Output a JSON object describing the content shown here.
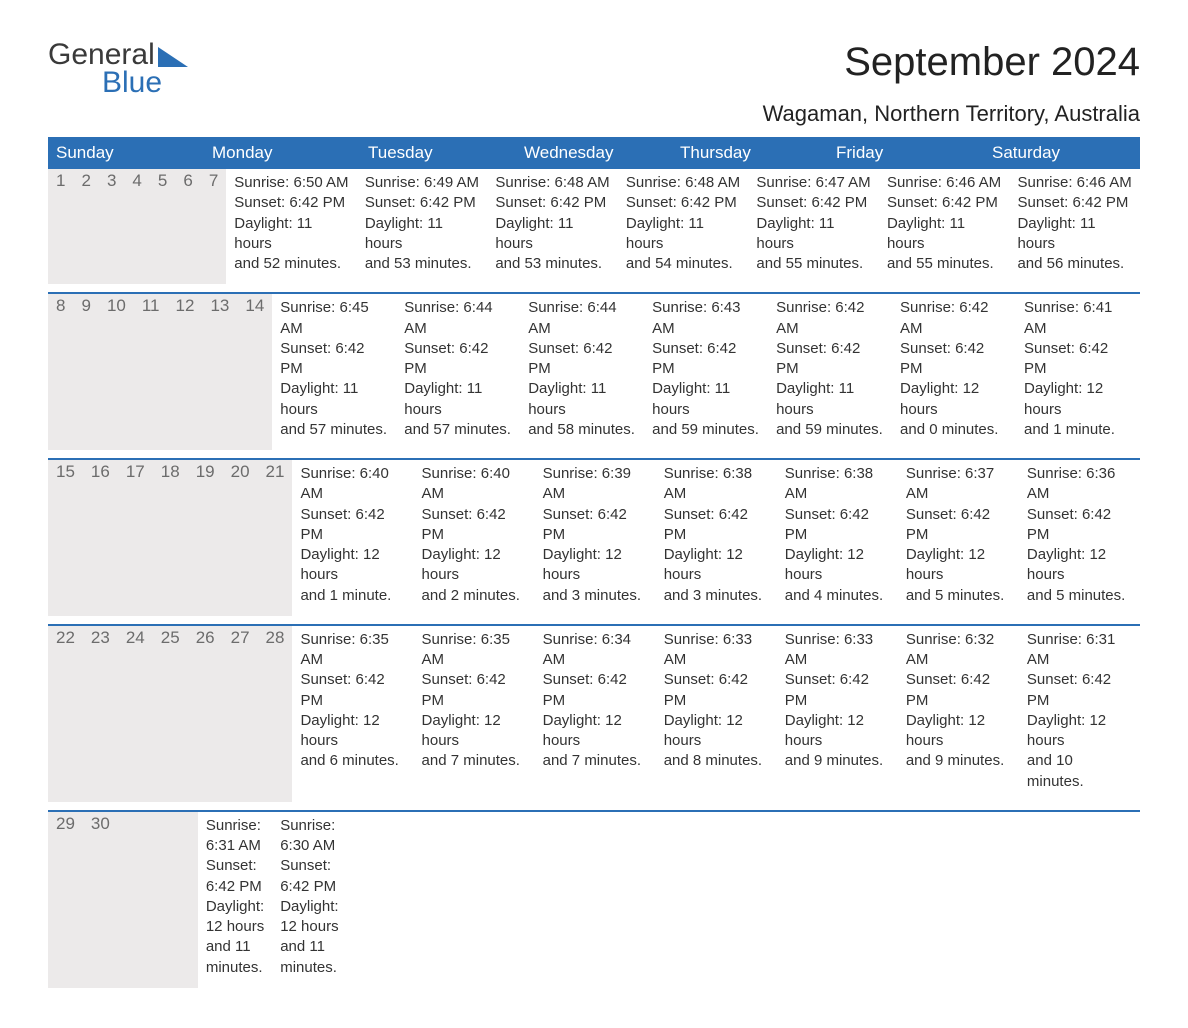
{
  "logo": {
    "line1": "General",
    "line2": "Blue"
  },
  "heading": {
    "month": "September 2024",
    "location": "Wagaman, Northern Territory, Australia"
  },
  "colors": {
    "primary": "#2b6fb5",
    "header_text": "#ffffff",
    "daynum_bg": "#eceaea",
    "daynum_text": "#6c6c6c",
    "body_text": "#333333",
    "background": "#ffffff"
  },
  "typography": {
    "month_title_fontsize": 40,
    "location_fontsize": 22,
    "weekday_fontsize": 17,
    "daynum_fontsize": 17,
    "cell_fontsize": 15
  },
  "weekdays": [
    "Sunday",
    "Monday",
    "Tuesday",
    "Wednesday",
    "Thursday",
    "Friday",
    "Saturday"
  ],
  "weeks": [
    {
      "nums": [
        "1",
        "2",
        "3",
        "4",
        "5",
        "6",
        "7"
      ],
      "days": [
        {
          "sunrise": "Sunrise: 6:50 AM",
          "sunset": "Sunset: 6:42 PM",
          "d1": "Daylight: 11 hours",
          "d2": "and 52 minutes."
        },
        {
          "sunrise": "Sunrise: 6:49 AM",
          "sunset": "Sunset: 6:42 PM",
          "d1": "Daylight: 11 hours",
          "d2": "and 53 minutes."
        },
        {
          "sunrise": "Sunrise: 6:48 AM",
          "sunset": "Sunset: 6:42 PM",
          "d1": "Daylight: 11 hours",
          "d2": "and 53 minutes."
        },
        {
          "sunrise": "Sunrise: 6:48 AM",
          "sunset": "Sunset: 6:42 PM",
          "d1": "Daylight: 11 hours",
          "d2": "and 54 minutes."
        },
        {
          "sunrise": "Sunrise: 6:47 AM",
          "sunset": "Sunset: 6:42 PM",
          "d1": "Daylight: 11 hours",
          "d2": "and 55 minutes."
        },
        {
          "sunrise": "Sunrise: 6:46 AM",
          "sunset": "Sunset: 6:42 PM",
          "d1": "Daylight: 11 hours",
          "d2": "and 55 minutes."
        },
        {
          "sunrise": "Sunrise: 6:46 AM",
          "sunset": "Sunset: 6:42 PM",
          "d1": "Daylight: 11 hours",
          "d2": "and 56 minutes."
        }
      ]
    },
    {
      "nums": [
        "8",
        "9",
        "10",
        "11",
        "12",
        "13",
        "14"
      ],
      "days": [
        {
          "sunrise": "Sunrise: 6:45 AM",
          "sunset": "Sunset: 6:42 PM",
          "d1": "Daylight: 11 hours",
          "d2": "and 57 minutes."
        },
        {
          "sunrise": "Sunrise: 6:44 AM",
          "sunset": "Sunset: 6:42 PM",
          "d1": "Daylight: 11 hours",
          "d2": "and 57 minutes."
        },
        {
          "sunrise": "Sunrise: 6:44 AM",
          "sunset": "Sunset: 6:42 PM",
          "d1": "Daylight: 11 hours",
          "d2": "and 58 minutes."
        },
        {
          "sunrise": "Sunrise: 6:43 AM",
          "sunset": "Sunset: 6:42 PM",
          "d1": "Daylight: 11 hours",
          "d2": "and 59 minutes."
        },
        {
          "sunrise": "Sunrise: 6:42 AM",
          "sunset": "Sunset: 6:42 PM",
          "d1": "Daylight: 11 hours",
          "d2": "and 59 minutes."
        },
        {
          "sunrise": "Sunrise: 6:42 AM",
          "sunset": "Sunset: 6:42 PM",
          "d1": "Daylight: 12 hours",
          "d2": "and 0 minutes."
        },
        {
          "sunrise": "Sunrise: 6:41 AM",
          "sunset": "Sunset: 6:42 PM",
          "d1": "Daylight: 12 hours",
          "d2": "and 1 minute."
        }
      ]
    },
    {
      "nums": [
        "15",
        "16",
        "17",
        "18",
        "19",
        "20",
        "21"
      ],
      "days": [
        {
          "sunrise": "Sunrise: 6:40 AM",
          "sunset": "Sunset: 6:42 PM",
          "d1": "Daylight: 12 hours",
          "d2": "and 1 minute."
        },
        {
          "sunrise": "Sunrise: 6:40 AM",
          "sunset": "Sunset: 6:42 PM",
          "d1": "Daylight: 12 hours",
          "d2": "and 2 minutes."
        },
        {
          "sunrise": "Sunrise: 6:39 AM",
          "sunset": "Sunset: 6:42 PM",
          "d1": "Daylight: 12 hours",
          "d2": "and 3 minutes."
        },
        {
          "sunrise": "Sunrise: 6:38 AM",
          "sunset": "Sunset: 6:42 PM",
          "d1": "Daylight: 12 hours",
          "d2": "and 3 minutes."
        },
        {
          "sunrise": "Sunrise: 6:38 AM",
          "sunset": "Sunset: 6:42 PM",
          "d1": "Daylight: 12 hours",
          "d2": "and 4 minutes."
        },
        {
          "sunrise": "Sunrise: 6:37 AM",
          "sunset": "Sunset: 6:42 PM",
          "d1": "Daylight: 12 hours",
          "d2": "and 5 minutes."
        },
        {
          "sunrise": "Sunrise: 6:36 AM",
          "sunset": "Sunset: 6:42 PM",
          "d1": "Daylight: 12 hours",
          "d2": "and 5 minutes."
        }
      ]
    },
    {
      "nums": [
        "22",
        "23",
        "24",
        "25",
        "26",
        "27",
        "28"
      ],
      "days": [
        {
          "sunrise": "Sunrise: 6:35 AM",
          "sunset": "Sunset: 6:42 PM",
          "d1": "Daylight: 12 hours",
          "d2": "and 6 minutes."
        },
        {
          "sunrise": "Sunrise: 6:35 AM",
          "sunset": "Sunset: 6:42 PM",
          "d1": "Daylight: 12 hours",
          "d2": "and 7 minutes."
        },
        {
          "sunrise": "Sunrise: 6:34 AM",
          "sunset": "Sunset: 6:42 PM",
          "d1": "Daylight: 12 hours",
          "d2": "and 7 minutes."
        },
        {
          "sunrise": "Sunrise: 6:33 AM",
          "sunset": "Sunset: 6:42 PM",
          "d1": "Daylight: 12 hours",
          "d2": "and 8 minutes."
        },
        {
          "sunrise": "Sunrise: 6:33 AM",
          "sunset": "Sunset: 6:42 PM",
          "d1": "Daylight: 12 hours",
          "d2": "and 9 minutes."
        },
        {
          "sunrise": "Sunrise: 6:32 AM",
          "sunset": "Sunset: 6:42 PM",
          "d1": "Daylight: 12 hours",
          "d2": "and 9 minutes."
        },
        {
          "sunrise": "Sunrise: 6:31 AM",
          "sunset": "Sunset: 6:42 PM",
          "d1": "Daylight: 12 hours",
          "d2": "and 10 minutes."
        }
      ]
    },
    {
      "nums": [
        "29",
        "30",
        "",
        "",
        "",
        "",
        ""
      ],
      "days": [
        {
          "sunrise": "Sunrise: 6:31 AM",
          "sunset": "Sunset: 6:42 PM",
          "d1": "Daylight: 12 hours",
          "d2": "and 11 minutes."
        },
        {
          "sunrise": "Sunrise: 6:30 AM",
          "sunset": "Sunset: 6:42 PM",
          "d1": "Daylight: 12 hours",
          "d2": "and 11 minutes."
        },
        {
          "empty": true
        },
        {
          "empty": true
        },
        {
          "empty": true
        },
        {
          "empty": true
        },
        {
          "empty": true
        }
      ]
    }
  ]
}
